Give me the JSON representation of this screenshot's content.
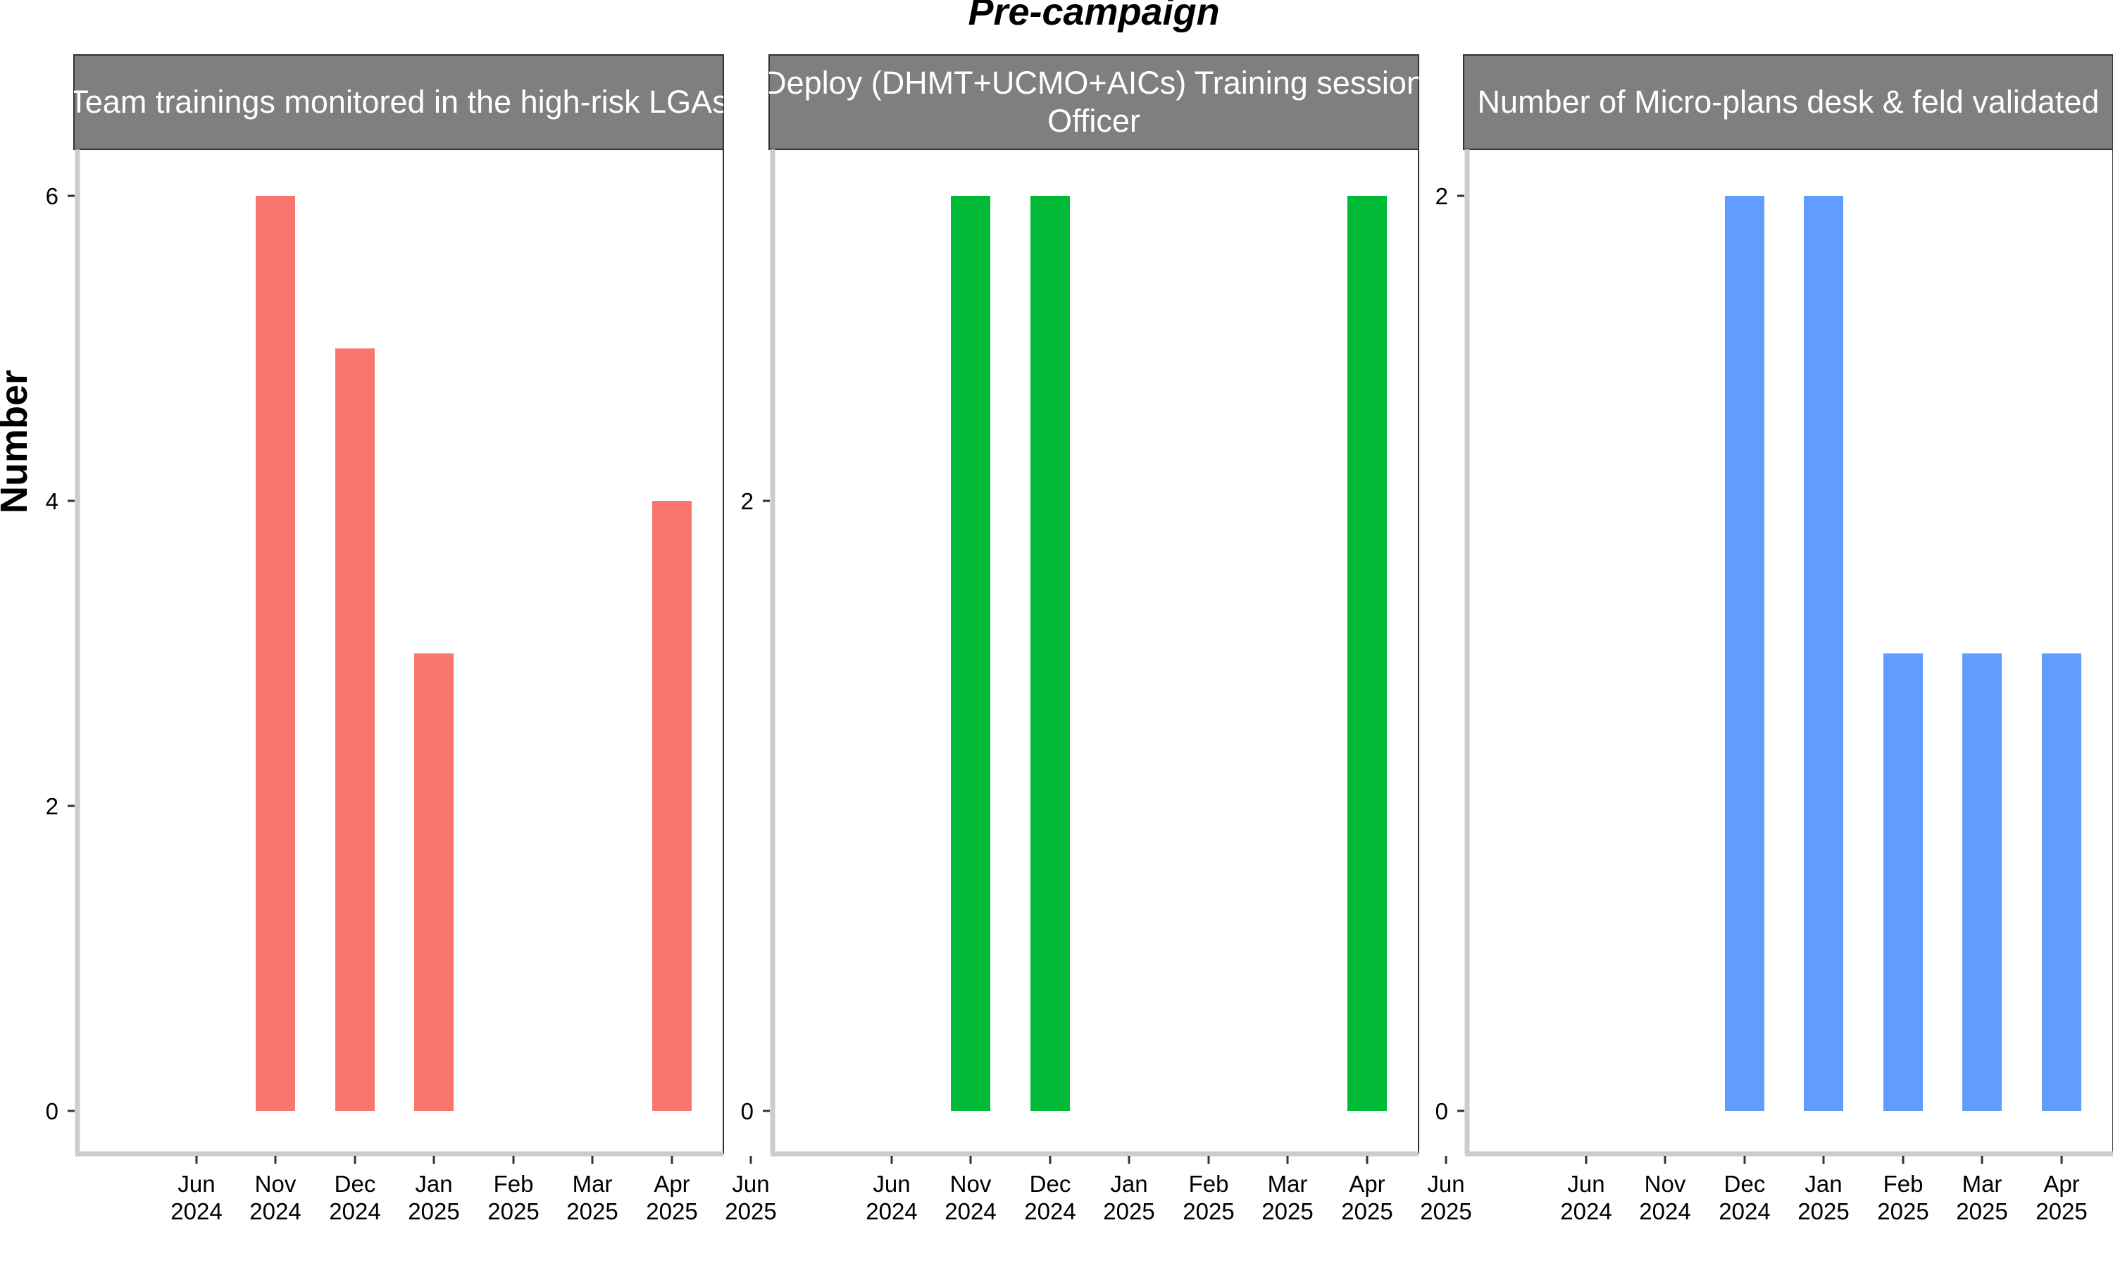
{
  "chart_data": {
    "type": "bar",
    "title": "Pre-campaign",
    "ylabel": "Number",
    "x_tick_labels": [
      {
        "month": "Jun",
        "year": "2024"
      },
      {
        "month": "Nov",
        "year": "2024"
      },
      {
        "month": "Dec",
        "year": "2024"
      },
      {
        "month": "Jan",
        "year": "2025"
      },
      {
        "month": "Feb",
        "year": "2025"
      },
      {
        "month": "Mar",
        "year": "2025"
      },
      {
        "month": "Apr",
        "year": "2025"
      },
      {
        "month": "Jun",
        "year": "2025"
      }
    ],
    "panels": [
      {
        "strip_lines": [
          "Team trainings monitored in the high-risk LGAs"
        ],
        "color": "#F8766D",
        "ylim": [
          -0.3,
          6.3
        ],
        "yticks": [
          0,
          2,
          4,
          6
        ],
        "points": [
          {
            "x": "Nov 2024",
            "value": 6
          },
          {
            "x": "Dec 2024",
            "value": 5
          },
          {
            "x": "Jan 2025",
            "value": 3
          },
          {
            "x": "Apr 2025",
            "value": 4
          }
        ]
      },
      {
        "strip_lines": [
          "Deploy (DHMT+UCMO+AICs) Training session",
          "Officer"
        ],
        "color": "#00BA38",
        "ylim": [
          -0.15,
          3.15
        ],
        "yticks": [
          0,
          2
        ],
        "points": [
          {
            "x": "Nov 2024",
            "value": 3
          },
          {
            "x": "Dec 2024",
            "value": 3
          },
          {
            "x": "Apr 2025",
            "value": 3
          }
        ]
      },
      {
        "strip_lines": [
          "Number of Micro-plans desk & feld validated"
        ],
        "color": "#619CFF",
        "ylim": [
          -0.1,
          2.1
        ],
        "yticks": [
          0,
          2
        ],
        "points": [
          {
            "x": "Dec 2024",
            "value": 2
          },
          {
            "x": "Jan 2025",
            "value": 2
          },
          {
            "x": "Feb 2025",
            "value": 1
          },
          {
            "x": "Mar 2025",
            "value": 1
          },
          {
            "x": "Apr 2025",
            "value": 1
          }
        ]
      }
    ]
  }
}
